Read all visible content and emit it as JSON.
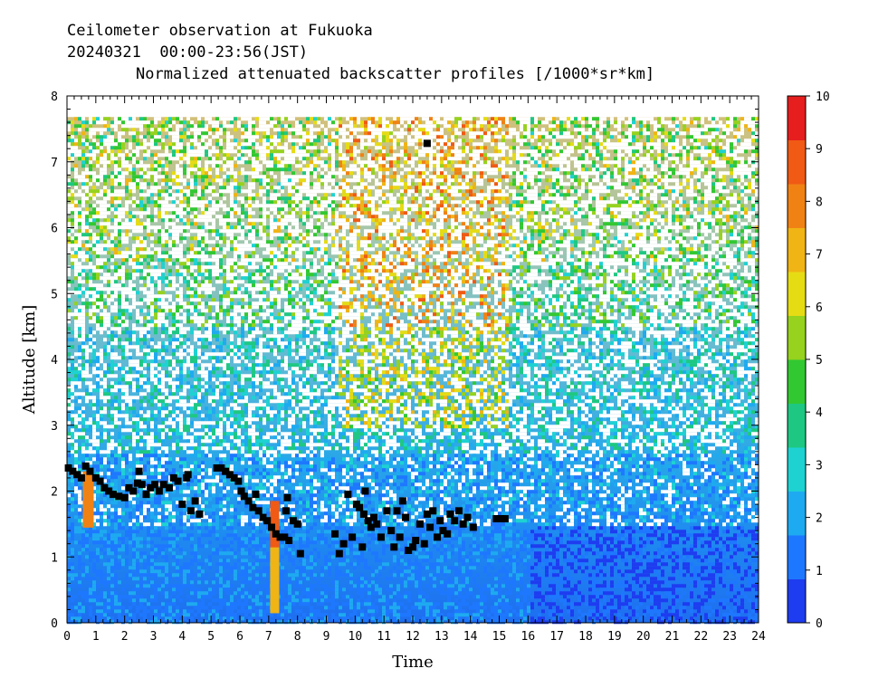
{
  "chart_data": {
    "type": "heatmap",
    "title_line1": "Ceilometer observation at Fukuoka",
    "title_line2": "20240321  00:00-23:56(JST)",
    "subtitle": "Normalized attenuated backscatter profiles [/1000*sr*km]",
    "xlabel": "Time",
    "ylabel": "Altitude [km]",
    "xlim": [
      0,
      24
    ],
    "ylim": [
      0,
      8
    ],
    "x_ticks": [
      "0",
      "1",
      "2",
      "3",
      "4",
      "5",
      "6",
      "7",
      "8",
      "9",
      "10",
      "11",
      "12",
      "13",
      "14",
      "15",
      "16",
      "17",
      "18",
      "19",
      "20",
      "21",
      "22",
      "23",
      "24"
    ],
    "y_ticks": [
      "0",
      "1",
      "2",
      "3",
      "4",
      "5",
      "6",
      "7",
      "8"
    ],
    "colorbar": {
      "range": [
        0,
        10
      ],
      "ticks": [
        "0",
        "1",
        "2",
        "3",
        "4",
        "5",
        "6",
        "7",
        "8",
        "9",
        "10"
      ],
      "colors": [
        "#1e3cf0",
        "#1e78ff",
        "#1eaaf0",
        "#1ed2d2",
        "#1ec882",
        "#32c832",
        "#96d21e",
        "#e6dc14",
        "#f0b414",
        "#f08214",
        "#f05a14",
        "#e61e1e"
      ]
    },
    "data_top_km": 7.68,
    "layer_markers": [
      {
        "x": 0.05,
        "y": 2.35
      },
      {
        "x": 0.2,
        "y": 2.3
      },
      {
        "x": 0.35,
        "y": 2.25
      },
      {
        "x": 0.5,
        "y": 2.2
      },
      {
        "x": 0.65,
        "y": 2.38
      },
      {
        "x": 0.8,
        "y": 2.3
      },
      {
        "x": 1.0,
        "y": 2.2
      },
      {
        "x": 1.15,
        "y": 2.15
      },
      {
        "x": 1.3,
        "y": 2.05
      },
      {
        "x": 1.45,
        "y": 2.0
      },
      {
        "x": 1.6,
        "y": 1.95
      },
      {
        "x": 1.8,
        "y": 1.92
      },
      {
        "x": 2.0,
        "y": 1.9
      },
      {
        "x": 2.15,
        "y": 2.05
      },
      {
        "x": 2.3,
        "y": 2.0
      },
      {
        "x": 2.45,
        "y": 2.12
      },
      {
        "x": 2.6,
        "y": 2.1
      },
      {
        "x": 2.75,
        "y": 1.95
      },
      {
        "x": 2.9,
        "y": 2.05
      },
      {
        "x": 3.05,
        "y": 2.1
      },
      {
        "x": 3.2,
        "y": 2.0
      },
      {
        "x": 3.35,
        "y": 2.1
      },
      {
        "x": 3.55,
        "y": 2.05
      },
      {
        "x": 3.7,
        "y": 2.2
      },
      {
        "x": 3.85,
        "y": 2.15
      },
      {
        "x": 4.0,
        "y": 1.8
      },
      {
        "x": 4.15,
        "y": 2.2
      },
      {
        "x": 4.3,
        "y": 1.7
      },
      {
        "x": 4.45,
        "y": 1.85
      },
      {
        "x": 4.6,
        "y": 1.65
      },
      {
        "x": 2.5,
        "y": 2.3
      },
      {
        "x": 4.2,
        "y": 2.25
      },
      {
        "x": 5.2,
        "y": 2.35
      },
      {
        "x": 5.35,
        "y": 2.35
      },
      {
        "x": 5.5,
        "y": 2.3
      },
      {
        "x": 5.65,
        "y": 2.25
      },
      {
        "x": 5.8,
        "y": 2.2
      },
      {
        "x": 5.95,
        "y": 2.15
      },
      {
        "x": 6.05,
        "y": 2.0
      },
      {
        "x": 6.15,
        "y": 1.92
      },
      {
        "x": 6.3,
        "y": 1.85
      },
      {
        "x": 6.45,
        "y": 1.75
      },
      {
        "x": 6.55,
        "y": 1.95
      },
      {
        "x": 6.65,
        "y": 1.7
      },
      {
        "x": 6.8,
        "y": 1.6
      },
      {
        "x": 6.95,
        "y": 1.55
      },
      {
        "x": 7.1,
        "y": 1.45
      },
      {
        "x": 7.25,
        "y": 1.35
      },
      {
        "x": 7.4,
        "y": 1.3
      },
      {
        "x": 7.55,
        "y": 1.3
      },
      {
        "x": 7.7,
        "y": 1.25
      },
      {
        "x": 7.65,
        "y": 1.9
      },
      {
        "x": 7.85,
        "y": 1.55
      },
      {
        "x": 8.0,
        "y": 1.5
      },
      {
        "x": 8.1,
        "y": 1.05
      },
      {
        "x": 7.6,
        "y": 1.7
      },
      {
        "x": 9.3,
        "y": 1.35
      },
      {
        "x": 9.45,
        "y": 1.05
      },
      {
        "x": 9.6,
        "y": 1.2
      },
      {
        "x": 9.75,
        "y": 1.95
      },
      {
        "x": 9.9,
        "y": 1.3
      },
      {
        "x": 10.05,
        "y": 1.8
      },
      {
        "x": 10.15,
        "y": 1.75
      },
      {
        "x": 10.25,
        "y": 1.15
      },
      {
        "x": 10.3,
        "y": 1.65
      },
      {
        "x": 10.35,
        "y": 2.0
      },
      {
        "x": 10.45,
        "y": 1.55
      },
      {
        "x": 10.55,
        "y": 1.45
      },
      {
        "x": 10.65,
        "y": 1.6
      },
      {
        "x": 10.75,
        "y": 1.5
      },
      {
        "x": 10.9,
        "y": 1.3
      },
      {
        "x": 11.1,
        "y": 1.7
      },
      {
        "x": 11.25,
        "y": 1.4
      },
      {
        "x": 11.35,
        "y": 1.15
      },
      {
        "x": 11.45,
        "y": 1.7
      },
      {
        "x": 11.55,
        "y": 1.3
      },
      {
        "x": 11.65,
        "y": 1.85
      },
      {
        "x": 11.75,
        "y": 1.6
      },
      {
        "x": 11.85,
        "y": 1.1
      },
      {
        "x": 12.0,
        "y": 1.15
      },
      {
        "x": 12.1,
        "y": 1.25
      },
      {
        "x": 12.25,
        "y": 1.5
      },
      {
        "x": 12.4,
        "y": 1.2
      },
      {
        "x": 12.5,
        "y": 1.65
      },
      {
        "x": 12.6,
        "y": 1.45
      },
      {
        "x": 12.7,
        "y": 1.7
      },
      {
        "x": 12.85,
        "y": 1.3
      },
      {
        "x": 12.95,
        "y": 1.55
      },
      {
        "x": 13.05,
        "y": 1.4
      },
      {
        "x": 13.2,
        "y": 1.35
      },
      {
        "x": 13.3,
        "y": 1.65
      },
      {
        "x": 13.45,
        "y": 1.55
      },
      {
        "x": 13.6,
        "y": 1.7
      },
      {
        "x": 13.75,
        "y": 1.5
      },
      {
        "x": 13.9,
        "y": 1.6
      },
      {
        "x": 14.1,
        "y": 1.45
      },
      {
        "x": 14.9,
        "y": 1.58
      },
      {
        "x": 15.05,
        "y": 1.58
      },
      {
        "x": 15.2,
        "y": 1.58
      },
      {
        "x": 12.5,
        "y": 7.28
      }
    ]
  }
}
